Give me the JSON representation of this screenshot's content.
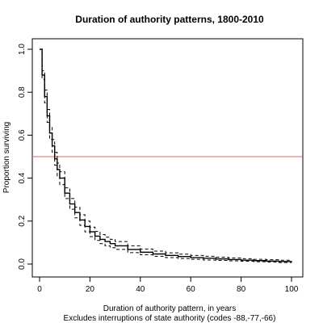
{
  "chart_data": {
    "type": "line",
    "title": "Duration of authority patterns, 1800-2010",
    "xlabel": "Duration of authority pattern, in years",
    "xlabel2": "Excludes interruptions of state authority (codes -88,-77,-66)",
    "ylabel": "Proportion surviving",
    "xlim": [
      0,
      100
    ],
    "ylim": [
      0,
      1
    ],
    "xticks": [
      "0",
      "20",
      "40",
      "60",
      "80",
      "100"
    ],
    "yticks": [
      "0.0",
      "0.2",
      "0.4",
      "0.6",
      "0.8",
      "1.0"
    ],
    "reference_line": {
      "y": 0.5,
      "color": "#e06666"
    },
    "x": [
      0,
      1,
      2,
      3,
      4,
      5,
      6,
      7,
      8,
      10,
      12,
      14,
      16,
      18,
      20,
      22,
      24,
      26,
      28,
      30,
      35,
      40,
      45,
      50,
      55,
      60,
      65,
      70,
      75,
      80,
      85,
      90,
      95,
      100
    ],
    "series": [
      {
        "role": "estimate",
        "values": [
          1.0,
          0.88,
          0.78,
          0.69,
          0.61,
          0.55,
          0.49,
          0.44,
          0.4,
          0.33,
          0.28,
          0.24,
          0.205,
          0.175,
          0.15,
          0.13,
          0.115,
          0.105,
          0.095,
          0.085,
          0.068,
          0.055,
          0.047,
          0.04,
          0.035,
          0.03,
          0.027,
          0.024,
          0.021,
          0.018,
          0.016,
          0.014,
          0.012,
          0.01
        ]
      },
      {
        "role": "upper",
        "values": [
          1.0,
          0.9,
          0.81,
          0.72,
          0.64,
          0.58,
          0.52,
          0.47,
          0.43,
          0.355,
          0.305,
          0.265,
          0.23,
          0.2,
          0.172,
          0.152,
          0.137,
          0.125,
          0.115,
          0.105,
          0.085,
          0.07,
          0.06,
          0.052,
          0.046,
          0.04,
          0.036,
          0.032,
          0.028,
          0.025,
          0.022,
          0.02,
          0.018,
          0.017
        ]
      },
      {
        "role": "lower",
        "values": [
          1.0,
          0.86,
          0.75,
          0.66,
          0.58,
          0.52,
          0.46,
          0.41,
          0.37,
          0.305,
          0.255,
          0.215,
          0.18,
          0.15,
          0.128,
          0.11,
          0.095,
          0.085,
          0.076,
          0.068,
          0.053,
          0.043,
          0.036,
          0.03,
          0.026,
          0.022,
          0.019,
          0.017,
          0.015,
          0.013,
          0.011,
          0.009,
          0.007,
          0.006
        ]
      }
    ]
  }
}
